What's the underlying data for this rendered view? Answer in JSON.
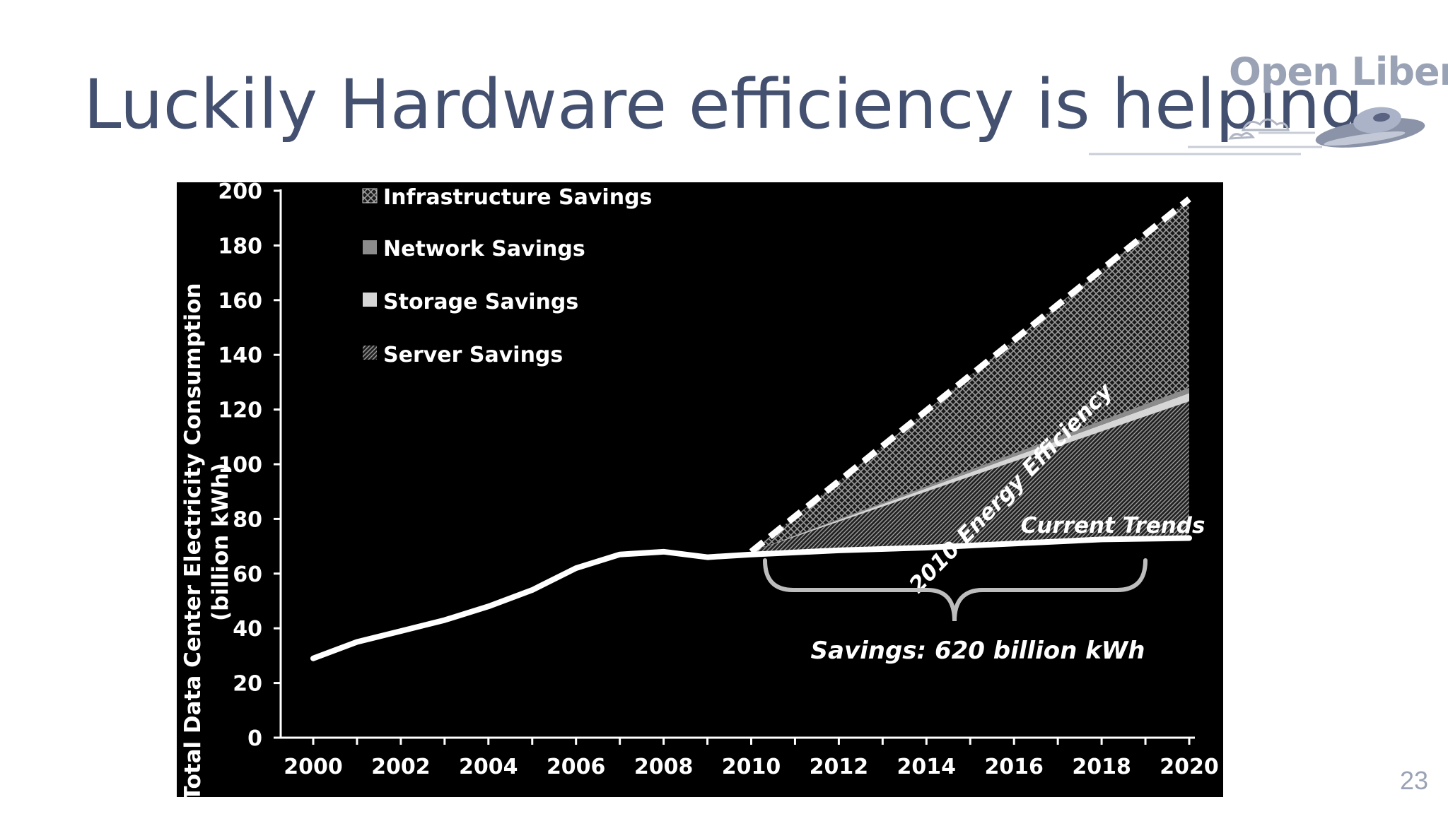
{
  "slide": {
    "title": "Luckily Hardware efficiency is helping",
    "page_number": "23",
    "title_color": "#44506f"
  },
  "logo": {
    "text": "Open Liberty",
    "icon": "flying-saucer-icon",
    "color": "#9aa3b5"
  },
  "chart_data": {
    "type": "area",
    "background": "#000000",
    "ylabel": "Total Data Center Electricity Consumption (billion kWh)",
    "ylabel_line1": "Total Data Center Electricity Consumption",
    "ylabel_line2": "(billion kWh)",
    "xlabel": "",
    "ylim": [
      0,
      200
    ],
    "xlim": [
      2000,
      2020
    ],
    "yticks": [
      0,
      20,
      40,
      60,
      80,
      100,
      120,
      140,
      160,
      180,
      200
    ],
    "xticks": [
      2000,
      2002,
      2004,
      2006,
      2008,
      2010,
      2012,
      2014,
      2016,
      2018,
      2020
    ],
    "grid": false,
    "legend_position": "top-left",
    "legend": [
      {
        "label": "Infrastructure Savings",
        "pattern": "crosshatch"
      },
      {
        "label": "Network Savings",
        "pattern": "gray"
      },
      {
        "label": "Storage Savings",
        "pattern": "light-gray"
      },
      {
        "label": "Server Savings",
        "pattern": "diagonal-hatch"
      }
    ],
    "series": [
      {
        "name": "Current Trends",
        "x": [
          2000,
          2001,
          2002,
          2003,
          2004,
          2005,
          2006,
          2007,
          2008,
          2009,
          2010,
          2012,
          2014,
          2016,
          2018,
          2020
        ],
        "values": [
          29,
          35,
          39,
          43,
          48,
          54,
          62,
          67,
          68,
          66,
          67,
          68.5,
          69.5,
          71,
          72.5,
          73
        ]
      },
      {
        "name": "2010 Energy Efficiency",
        "x": [
          2010,
          2020
        ],
        "values": [
          68,
          197
        ]
      }
    ],
    "bands": [
      {
        "name": "Server Savings",
        "x": [
          2010,
          2020
        ],
        "lower": [
          67,
          73
        ],
        "upper": [
          68,
          123
        ]
      },
      {
        "name": "Storage Savings",
        "x": [
          2010,
          2020
        ],
        "lower": [
          68,
          123
        ],
        "upper": [
          68,
          126
        ]
      },
      {
        "name": "Network Savings",
        "x": [
          2010,
          2020
        ],
        "lower": [
          68,
          126
        ],
        "upper": [
          68,
          128
        ]
      },
      {
        "name": "Infrastructure Savings",
        "x": [
          2010,
          2020
        ],
        "lower": [
          68,
          128
        ],
        "upper": [
          68,
          197
        ]
      }
    ],
    "annotations": [
      {
        "text": "2010 Energy Efficiency",
        "x": 2014.9,
        "y": 148
      },
      {
        "text": "Current Trends",
        "x": 2018.2,
        "y": 78
      },
      {
        "text": "Savings: 620 billion kWh",
        "x": 2015.2,
        "y": 32
      }
    ],
    "brace": {
      "x_start": 2010,
      "x_end": 2020,
      "y": 57
    }
  }
}
